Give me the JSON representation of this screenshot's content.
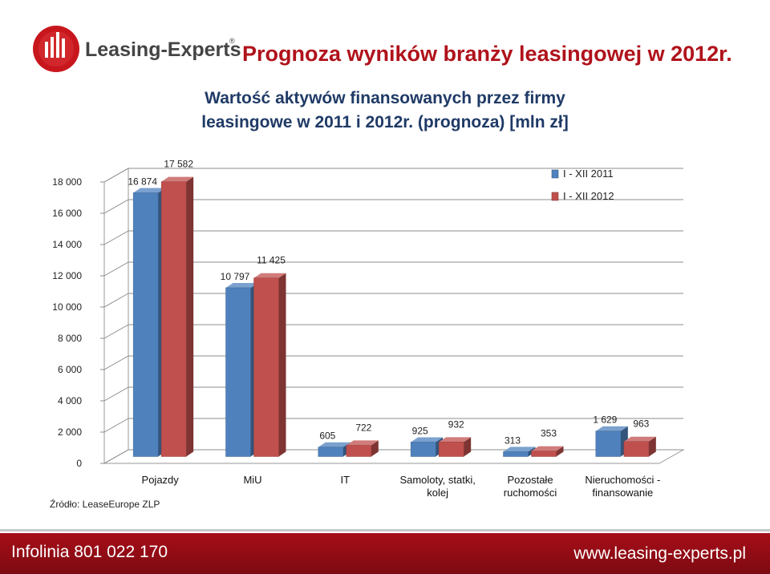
{
  "logo": {
    "text": "Leasing-Experts",
    "reg_mark": "®"
  },
  "header": {
    "title": "Prognoza wyników branży leasingowej w 2012r.",
    "subtitle_line1": "Wartość aktywów finansowanych przez firmy",
    "subtitle_line2": "leasingowe w 2011 i 2012r. (prognoza) [mln zł]"
  },
  "chart_data": {
    "type": "bar",
    "categories": [
      [
        "Pojazdy"
      ],
      [
        "MiU"
      ],
      [
        "IT"
      ],
      [
        "Samoloty, statki,",
        "kolej"
      ],
      [
        "Pozostałe",
        "ruchomości"
      ],
      [
        "Nieruchomości -",
        "finansowanie"
      ]
    ],
    "series": [
      {
        "name": "I - XII 2011",
        "color": "#4f81bd",
        "values": [
          16874,
          10797,
          605,
          925,
          313,
          1629
        ],
        "labels": [
          "16 874",
          "10 797",
          "605",
          "925",
          "313",
          "1 629"
        ]
      },
      {
        "name": "I - XII 2012",
        "color": "#c0504d",
        "values": [
          17582,
          11425,
          722,
          932,
          353,
          963
        ],
        "labels": [
          "17 582",
          "11 425",
          "722",
          "932",
          "353",
          "963"
        ]
      }
    ],
    "ylim": [
      0,
      18000
    ],
    "yticks": [
      0,
      2000,
      4000,
      6000,
      8000,
      10000,
      12000,
      14000,
      16000,
      18000
    ],
    "ytick_labels": [
      "0",
      "2 000",
      "4 000",
      "6 000",
      "8 000",
      "10 000",
      "12 000",
      "14 000",
      "16 000",
      "18 000"
    ],
    "legend_position": "top-right",
    "grid": true,
    "style": "3d-clustered-columns"
  },
  "source_note": "Źródło: LeaseEurope ZLP",
  "footer": {
    "hotline": "Infolinia 801 022 170",
    "website": "www.leasing-experts.pl"
  }
}
